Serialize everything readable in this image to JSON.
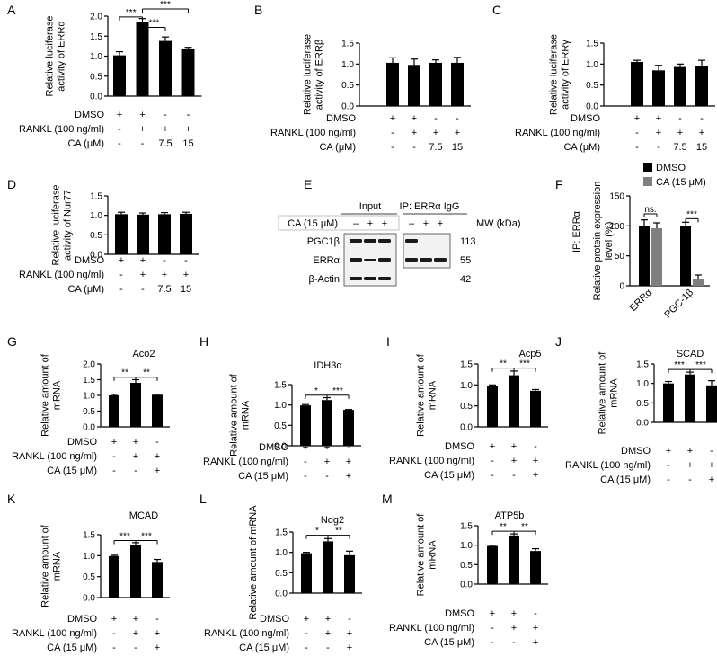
{
  "colors": {
    "bar": "#000000",
    "bar_gray": "#7f7f7f",
    "blot_band": "#1a1a1a"
  },
  "chart_data": [
    {
      "panel": "A",
      "type": "bar",
      "title": "",
      "ylabel_lines": [
        "Relative luciferase",
        "activity of  ERRα"
      ],
      "ylim": [
        0,
        2.0
      ],
      "yticks": [
        "0.0",
        "0.5",
        "1.0",
        "1.5",
        "2.0"
      ],
      "values": [
        1.02,
        1.85,
        1.38,
        1.17
      ],
      "errors": [
        0.09,
        0.09,
        0.1,
        0.05
      ],
      "sig": [
        {
          "from": 0,
          "to": 1,
          "label": "***",
          "level": 1.98
        },
        {
          "from": 1,
          "to": 2,
          "label": "***",
          "level": 1.72
        },
        {
          "from": 1,
          "to": 3,
          "label": "***",
          "level": 2.18
        }
      ],
      "conditions": [
        {
          "label": "DMSO",
          "marks": [
            "+",
            "+",
            "-",
            "-"
          ]
        },
        {
          "label": "RANKL (100 ng/ml)",
          "marks": [
            "-",
            "+",
            "+",
            "+"
          ]
        },
        {
          "label": "CA (μM)",
          "marks": [
            "-",
            "-",
            "7.5",
            "15"
          ]
        }
      ]
    },
    {
      "panel": "B",
      "type": "bar",
      "title": "",
      "ylabel_lines": [
        "Relative luciferase",
        "activity of  ERRβ"
      ],
      "ylim": [
        0,
        1.5
      ],
      "yticks": [
        "0.0",
        "0.5",
        "1.0",
        "1.5"
      ],
      "values": [
        1.03,
        0.98,
        1.03,
        1.03
      ],
      "errors": [
        0.12,
        0.14,
        0.07,
        0.13
      ],
      "sig": [],
      "conditions": [
        {
          "label": "DMSO",
          "marks": [
            "+",
            "+",
            "-",
            "-"
          ]
        },
        {
          "label": "RANKL (100 ng/ml)",
          "marks": [
            "-",
            "+",
            "+",
            "+"
          ]
        },
        {
          "label": "CA (μM)",
          "marks": [
            "-",
            "-",
            "7.5",
            "15"
          ]
        }
      ]
    },
    {
      "panel": "C",
      "type": "bar",
      "title": "",
      "ylabel_lines": [
        "Relative luciferase",
        "activity of  ERRγ"
      ],
      "ylim": [
        0,
        1.5
      ],
      "yticks": [
        "0.0",
        "0.5",
        "1.0",
        "1.5"
      ],
      "values": [
        1.05,
        0.85,
        0.93,
        0.95
      ],
      "errors": [
        0.04,
        0.12,
        0.07,
        0.14
      ],
      "sig": [],
      "conditions": [
        {
          "label": "DMSO",
          "marks": [
            "+",
            "+",
            "-",
            "-"
          ]
        },
        {
          "label": "RANKL (100 ng/ml)",
          "marks": [
            "-",
            "+",
            "+",
            "+"
          ]
        },
        {
          "label": "CA (μM)",
          "marks": [
            "-",
            "-",
            "7.5",
            "15"
          ]
        }
      ]
    },
    {
      "panel": "D",
      "type": "bar",
      "title": "",
      "ylabel_lines": [
        "Relative luciferase",
        "activity of  Nur77"
      ],
      "ylim": [
        0,
        1.5
      ],
      "yticks": [
        "0.0",
        "0.5",
        "1.0",
        "1.5"
      ],
      "values": [
        1.03,
        1.02,
        1.03,
        1.04
      ],
      "errors": [
        0.05,
        0.04,
        0.04,
        0.04
      ],
      "sig": [],
      "conditions": [
        {
          "label": "DMSO",
          "marks": [
            "+",
            "+",
            "-",
            "-"
          ]
        },
        {
          "label": "RANKL (100 ng/ml)",
          "marks": [
            "-",
            "+",
            "+",
            "+"
          ]
        },
        {
          "label": "CA (μM)",
          "marks": [
            "-",
            "-",
            "7.5",
            "15"
          ]
        }
      ]
    },
    {
      "panel": "F",
      "type": "bar",
      "title": "",
      "ylabel_lines": [
        "Relative protein expression",
        "level (%)"
      ],
      "outer_label": "IP: ERRα",
      "ylim": [
        0,
        150
      ],
      "yticks": [
        "0",
        "50",
        "100",
        "150"
      ],
      "categories": [
        "ERRα",
        "PGC-1β"
      ],
      "series": [
        {
          "name": "DMSO",
          "values": [
            100,
            100
          ],
          "errors": [
            10,
            6
          ]
        },
        {
          "name": "CA (15 μM)",
          "values": [
            96,
            12
          ],
          "errors": [
            9,
            6
          ]
        }
      ],
      "sig": [
        {
          "category": 0,
          "label": "ns.",
          "level": 120
        },
        {
          "category": 1,
          "label": "***",
          "level": 112
        }
      ],
      "legend": "top-right"
    },
    {
      "panel": "G",
      "type": "bar",
      "title": "Aco2",
      "ylabel_lines": [
        "Relative amount of",
        "mRNA"
      ],
      "ylim": [
        0,
        2.0
      ],
      "yticks": [
        "0.0",
        "0.5",
        "1.0",
        "1.5",
        "2.0"
      ],
      "values": [
        1.0,
        1.4,
        1.02
      ],
      "errors": [
        0.03,
        0.1,
        0.02
      ],
      "sig": [
        {
          "from": 0,
          "to": 1,
          "label": "**",
          "level": 1.58
        },
        {
          "from": 1,
          "to": 2,
          "label": "**",
          "level": 1.58
        }
      ],
      "conditions": [
        {
          "label": "DMSO",
          "marks": [
            "+",
            "+",
            "-"
          ]
        },
        {
          "label": "RANKL (100 ng/ml)",
          "marks": [
            "-",
            "+",
            "+"
          ]
        },
        {
          "label": "CA (15 μM)",
          "marks": [
            "-",
            "-",
            "+"
          ]
        }
      ]
    },
    {
      "panel": "H",
      "type": "bar",
      "title": "IDH3α",
      "ylabel_lines": [
        "Relative amount of",
        "mRNA"
      ],
      "ylim": [
        0,
        1.5
      ],
      "yticks": [
        "0.0",
        "0.5",
        "1.0",
        "1.5"
      ],
      "values": [
        0.99,
        1.12,
        0.88
      ],
      "errors": [
        0.02,
        0.06,
        0.01
      ],
      "sig": [
        {
          "from": 0,
          "to": 1,
          "label": "*",
          "level": 1.24
        },
        {
          "from": 1,
          "to": 2,
          "label": "***",
          "level": 1.24
        }
      ],
      "conditions": [
        {
          "label": "DMSO",
          "marks": [
            "+",
            "+",
            "-"
          ]
        },
        {
          "label": "RANKL (100 ng/ml)",
          "marks": [
            "-",
            "+",
            "+"
          ]
        },
        {
          "label": "CA (15 μM)",
          "marks": [
            "-",
            "-",
            "+"
          ]
        }
      ]
    },
    {
      "panel": "I",
      "type": "bar",
      "title": "Acp5",
      "ylabel_lines": [
        "Relative amount of",
        "mRNA"
      ],
      "ylim": [
        0,
        1.5
      ],
      "yticks": [
        "0.0",
        "0.5",
        "1.0",
        "1.5"
      ],
      "values": [
        0.98,
        1.23,
        0.86
      ],
      "errors": [
        0.02,
        0.1,
        0.03
      ],
      "sig": [
        {
          "from": 0,
          "to": 1,
          "label": "**",
          "level": 1.4
        },
        {
          "from": 1,
          "to": 2,
          "label": "***",
          "level": 1.4
        }
      ],
      "conditions": [
        {
          "label": "DMSO",
          "marks": [
            "+",
            "+",
            "-"
          ]
        },
        {
          "label": "RANKL (100 ng/ml)",
          "marks": [
            "-",
            "+",
            "+"
          ]
        },
        {
          "label": "CA (15 μM)",
          "marks": [
            "-",
            "-",
            "+"
          ]
        }
      ]
    },
    {
      "panel": "J",
      "type": "bar",
      "title": "SCAD",
      "ylabel_lines": [
        "Relative amount of",
        "mRNA"
      ],
      "ylim": [
        0,
        1.5
      ],
      "yticks": [
        "0.0",
        "0.5",
        "1.0",
        "1.5"
      ],
      "values": [
        1.0,
        1.23,
        0.95
      ],
      "errors": [
        0.05,
        0.06,
        0.12
      ],
      "sig": [
        {
          "from": 0,
          "to": 1,
          "label": "***",
          "level": 1.36
        },
        {
          "from": 1,
          "to": 2,
          "label": "***",
          "level": 1.36
        }
      ],
      "conditions": [
        {
          "label": "DMSO",
          "marks": [
            "+",
            "+",
            "-"
          ]
        },
        {
          "label": "RANKL (100 ng/ml)",
          "marks": [
            "-",
            "+",
            "+"
          ]
        },
        {
          "label": "CA (15 μM)",
          "marks": [
            "-",
            "-",
            "+"
          ]
        }
      ]
    },
    {
      "panel": "K",
      "type": "bar",
      "title": "MCAD",
      "ylabel_lines": [
        "Relative amount of",
        "mRNA"
      ],
      "ylim": [
        0,
        1.5
      ],
      "yticks": [
        "0.0",
        "0.5",
        "1.0",
        "1.5"
      ],
      "values": [
        0.99,
        1.26,
        0.85
      ],
      "errors": [
        0.02,
        0.05,
        0.06
      ],
      "sig": [
        {
          "from": 0,
          "to": 1,
          "label": "***",
          "level": 1.36
        },
        {
          "from": 1,
          "to": 2,
          "label": "***",
          "level": 1.36
        }
      ],
      "conditions": [
        {
          "label": "DMSO",
          "marks": [
            "+",
            "+",
            "-"
          ]
        },
        {
          "label": "RANKL (100 ng/ml)",
          "marks": [
            "-",
            "+",
            "+"
          ]
        },
        {
          "label": "CA (15 μM)",
          "marks": [
            "-",
            "-",
            "+"
          ]
        }
      ]
    },
    {
      "panel": "L",
      "type": "bar",
      "title": "Ndg2",
      "ylabel_lines": [
        "Relative amount of mRNA"
      ],
      "ylim": [
        0,
        1.5
      ],
      "yticks": [
        "0.0",
        "0.5",
        "1.0",
        "1.5"
      ],
      "values": [
        0.98,
        1.27,
        0.93
      ],
      "errors": [
        0.02,
        0.07,
        0.1
      ],
      "sig": [
        {
          "from": 0,
          "to": 1,
          "label": "*",
          "level": 1.42
        },
        {
          "from": 1,
          "to": 2,
          "label": "**",
          "level": 1.42
        }
      ],
      "conditions": [
        {
          "label": "DMSO",
          "marks": [
            "+",
            "+",
            "-"
          ]
        },
        {
          "label": "RANKL (100 ng/ml)",
          "marks": [
            "-",
            "+",
            "+"
          ]
        },
        {
          "label": "CA (15 μM)",
          "marks": [
            "-",
            "-",
            "+"
          ]
        }
      ]
    },
    {
      "panel": "M",
      "type": "bar",
      "title": "ATP5b",
      "ylabel_lines": [
        "Relative amount of",
        "mRNA"
      ],
      "ylim": [
        0,
        1.5
      ],
      "yticks": [
        "0.0",
        "0.5",
        "1.0",
        "1.5"
      ],
      "values": [
        0.98,
        1.25,
        0.85
      ],
      "errors": [
        0.02,
        0.04,
        0.06
      ],
      "sig": [
        {
          "from": 0,
          "to": 1,
          "label": "**",
          "level": 1.36
        },
        {
          "from": 1,
          "to": 2,
          "label": "**",
          "level": 1.36
        }
      ],
      "conditions": [
        {
          "label": "DMSO",
          "marks": [
            "+",
            "+",
            "-"
          ]
        },
        {
          "label": "RANKL (100 ng/ml)",
          "marks": [
            "-",
            "+",
            "+"
          ]
        },
        {
          "label": "CA (15 μM)",
          "marks": [
            "-",
            "-",
            "+"
          ]
        }
      ]
    }
  ],
  "blot": {
    "panel": "E",
    "header_input": "Input",
    "header_ip": "IP: ERRα IgG",
    "treatment_label": "CA (15 μM)",
    "treatment_marks": [
      "–",
      "+",
      "+",
      "–",
      "+",
      "+"
    ],
    "mw_label": "MW (kDa)",
    "rows": [
      {
        "label": "PGC1β",
        "mw": "113"
      },
      {
        "label": "ERRα",
        "mw": "55"
      },
      {
        "label": "β-Actin",
        "mw": "42"
      }
    ]
  }
}
